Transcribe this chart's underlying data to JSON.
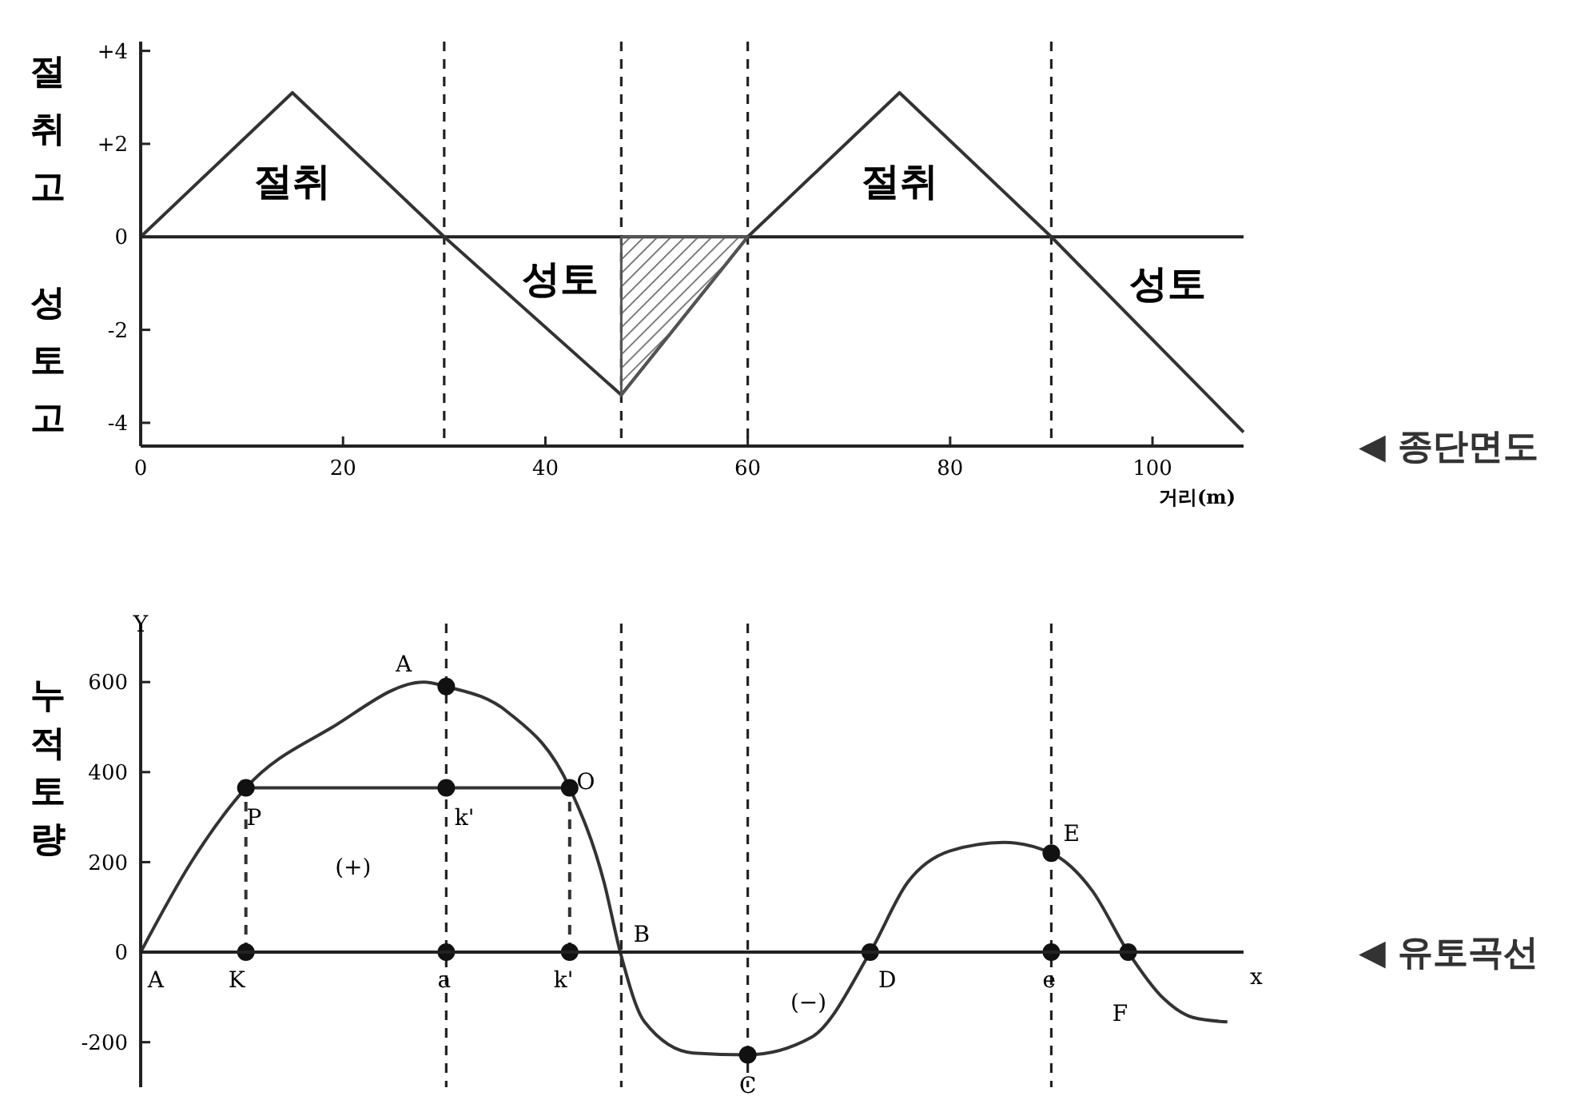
{
  "chart_data": [
    {
      "type": "line",
      "xlabel": "거리(m)",
      "ylabel": "절취고 성토고",
      "xlim": [
        0,
        109
      ],
      "ylim": [
        -4.5,
        4.2
      ],
      "xticks": [
        0,
        20,
        40,
        60,
        80,
        100
      ],
      "yticks": [
        {
          "value": 4,
          "label": "+4"
        },
        {
          "value": 2,
          "label": "+2"
        },
        0,
        -2,
        -4
      ],
      "series": [
        {
          "color": "#333333",
          "x": [
            0,
            15,
            30,
            47.5,
            60,
            75,
            90,
            109
          ],
          "values": [
            0,
            3.1,
            0,
            -3.4,
            0,
            3.1,
            0,
            -4.2
          ]
        },
        {
          "type": "area",
          "color": "#555555",
          "x": [
            47.5,
            60
          ],
          "values": [
            -3.4,
            0
          ]
        }
      ],
      "ref_lines": [
        {
          "axis": "y",
          "value": 0,
          "line_style": "solid"
        },
        {
          "axis": "x",
          "value": 30,
          "line_style": "dashed"
        },
        {
          "axis": "x",
          "value": 47.5,
          "line_style": "dashed"
        },
        {
          "axis": "x",
          "value": 60,
          "line_style": "dashed"
        },
        {
          "axis": "x",
          "value": 90,
          "line_style": "dashed"
        }
      ],
      "annotations": [
        "◀ 종단면도",
        "절취",
        "성토",
        "절취",
        "성토"
      ]
    },
    {
      "type": "line",
      "xlabel": "x",
      "ylabel": "누적토량",
      "xlim": [
        0,
        109
      ],
      "ylim": [
        -300,
        730
      ],
      "tick_labels": "y",
      "yticks": [
        600,
        400,
        200,
        0,
        -200
      ],
      "series": [
        {
          "color": "#333333",
          "x": [
            0,
            5,
            10.4,
            18.9,
            28,
            30.2,
            36.3,
            42.4,
            45.8,
            47.4,
            49.8,
            54.6,
            60,
            66.3,
            72.1,
            75.8,
            80,
            85.3,
            90,
            94,
            97.6,
            101.1,
            104,
            107.4
          ],
          "values": [
            0,
            200,
            365,
            499,
            600,
            590,
            533,
            365,
            155,
            0,
            -155,
            -224,
            -228,
            -189,
            0,
            155,
            225,
            244,
            220,
            138,
            0,
            -103,
            -145,
            -155
          ]
        },
        {
          "type": "line",
          "color": "#333333",
          "x": [
            10.4,
            42.4
          ],
          "values": [
            365,
            365
          ]
        },
        {
          "type": "line",
          "color": "#333333",
          "line_style": "dashed",
          "x": [
            10.4,
            10.4
          ],
          "values": [
            0,
            365
          ]
        },
        {
          "type": "line",
          "color": "#333333",
          "line_style": "dashed",
          "x": [
            42.4,
            42.4
          ],
          "values": [
            0,
            365
          ]
        },
        {
          "type": "scatter",
          "color": "#111111",
          "marker": "circle",
          "x": [
            10.4,
            30.2,
            42.4,
            30.2,
            10.4,
            30.2,
            42.4,
            60,
            72.1,
            90,
            97.6,
            90
          ],
          "values": [
            365,
            365,
            365,
            590,
            0,
            0,
            0,
            -228,
            0,
            0,
            0,
            220
          ]
        }
      ],
      "ref_lines": [
        {
          "axis": "y",
          "value": 0,
          "line_style": "solid"
        },
        {
          "axis": "x",
          "value": 30.2,
          "line_style": "dashed"
        },
        {
          "axis": "x",
          "value": 47.5,
          "line_style": "dashed"
        },
        {
          "axis": "x",
          "value": 60,
          "line_style": "dashed"
        },
        {
          "axis": "x",
          "value": 90,
          "line_style": "dashed"
        }
      ],
      "annotations": [
        "◀ 유토곡선",
        "Y",
        "A",
        "P",
        "k'",
        "O",
        "(+)",
        "(−)",
        "A",
        "K",
        "a",
        "k'",
        "B",
        "C",
        "D",
        "e",
        "E",
        "F"
      ]
    }
  ]
}
